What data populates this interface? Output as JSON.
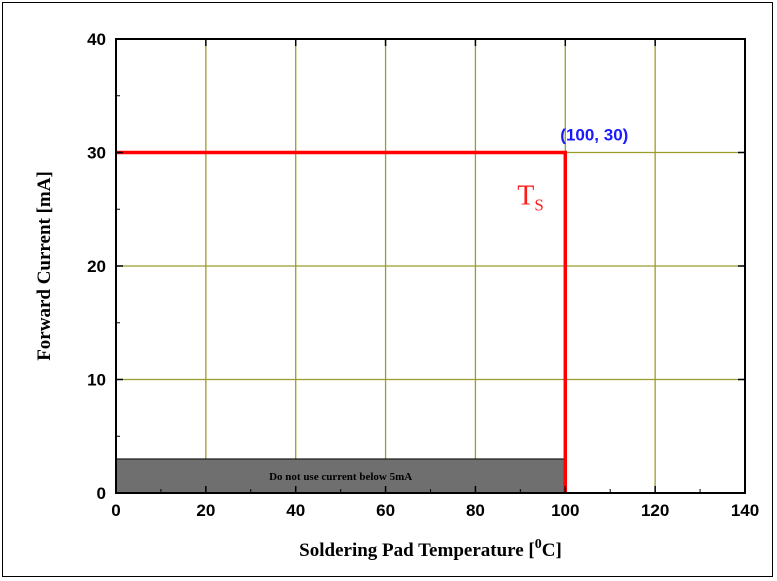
{
  "chart_data": {
    "type": "line",
    "xlabel_main": "Soldering Pad Temperature [",
    "xlabel_sup": "0",
    "xlabel_end": "C]",
    "ylabel": "Forward Current [mA]",
    "xlim": [
      0,
      140
    ],
    "ylim": [
      0,
      40
    ],
    "x_ticks": [
      0,
      20,
      40,
      60,
      80,
      100,
      120,
      140
    ],
    "y_ticks": [
      0,
      10,
      20,
      30,
      40
    ],
    "x_tick_labels": [
      "0",
      "20",
      "40",
      "60",
      "80",
      "100",
      "120",
      "140"
    ],
    "y_tick_labels": [
      "0",
      "10",
      "20",
      "30",
      "40"
    ],
    "grid": true,
    "series": [
      {
        "x": [
          0,
          100,
          100
        ],
        "y": [
          30,
          30,
          0
        ],
        "color": "#ff0000"
      }
    ],
    "annotations": [
      {
        "text": "(100, 30)",
        "color": "#1a1aff"
      },
      {
        "text": "T",
        "subscript": "S",
        "color": "#ff1a1a"
      }
    ],
    "shaded_region": {
      "x": [
        0,
        100
      ],
      "y": [
        0,
        3
      ],
      "color": "#6f6f6f",
      "label": "Do not use current below 5mA"
    },
    "colors": {
      "grid": "#9c9c2a",
      "line": "#ff0000",
      "box": "#6f6f6f"
    }
  }
}
